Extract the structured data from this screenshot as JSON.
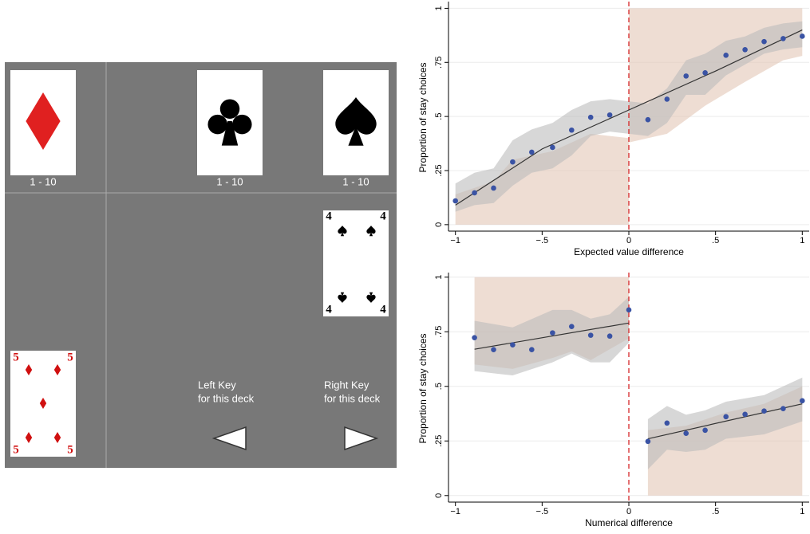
{
  "task": {
    "decks": [
      {
        "range": "1 - 10"
      },
      {
        "range": "1 - 10"
      },
      {
        "range": "1 - 10"
      }
    ],
    "cards": [
      {
        "rank": "4"
      },
      {
        "rank": "5"
      }
    ],
    "keys": [
      [
        "Left Key",
        "for this deck"
      ],
      [
        "Right Key",
        "for this deck"
      ]
    ]
  },
  "chart_data": [
    {
      "type": "scatter",
      "y_label": "Proportion of stay choices",
      "x_label": "Expected value difference",
      "xlim": [
        -1.04,
        1.04
      ],
      "ylim": [
        -0.03,
        1.02
      ],
      "xticks": [
        {
          "value": -1,
          "label": "−1"
        },
        {
          "value": -0.5,
          "label": "−.5"
        },
        0,
        {
          "value": 0.5,
          "label": ".5"
        },
        1
      ],
      "yticks": [
        0,
        {
          "value": 0.25,
          "label": ".25"
        },
        {
          "value": 0.5,
          "label": ".5"
        },
        {
          "value": 0.75,
          "label": ".75"
        },
        1
      ],
      "grid": true,
      "vline": 0,
      "vline_color": "#d62728",
      "bands": [
        {
          "color": "#e3c6b6",
          "x": [
            -1,
            -0.78,
            -0.67,
            -0.44,
            -0.22,
            0
          ],
          "lower": [
            0,
            0,
            0,
            0,
            0,
            0
          ],
          "upper": [
            0.14,
            0.2,
            0.3,
            0.34,
            0.42,
            0.4
          ]
        },
        {
          "color": "#e3c6b6",
          "x": [
            0,
            0.22,
            0.44,
            0.67,
            0.89,
            1
          ],
          "lower": [
            0.38,
            0.42,
            0.55,
            0.66,
            0.76,
            0.78
          ],
          "upper": [
            1,
            1,
            1,
            1,
            1,
            1
          ]
        },
        {
          "color": "#bdbdbd",
          "x": [
            -1,
            -0.89,
            -0.78,
            -0.67,
            -0.56,
            -0.44,
            -0.33,
            -0.22,
            -0.11,
            0.11,
            0.22,
            0.33,
            0.44,
            0.56,
            0.67,
            0.78,
            0.89,
            1
          ],
          "lower": [
            0.06,
            0.09,
            0.1,
            0.18,
            0.24,
            0.26,
            0.32,
            0.41,
            0.43,
            0.41,
            0.47,
            0.6,
            0.6,
            0.69,
            0.74,
            0.79,
            0.81,
            0.82
          ],
          "upper": [
            0.19,
            0.24,
            0.26,
            0.39,
            0.44,
            0.47,
            0.53,
            0.57,
            0.58,
            0.56,
            0.63,
            0.76,
            0.79,
            0.85,
            0.87,
            0.91,
            0.93,
            0.94
          ]
        }
      ],
      "fits": [
        {
          "color": "#333333",
          "x": [
            -1,
            -0.5,
            0,
            0.5,
            1
          ],
          "y": [
            0.09,
            0.35,
            0.53,
            0.71,
            0.9
          ]
        }
      ],
      "points": {
        "color": "#3a53a4",
        "x": [
          -1,
          -0.89,
          -0.78,
          -0.67,
          -0.56,
          -0.44,
          -0.33,
          -0.22,
          -0.11,
          0.11,
          0.22,
          0.33,
          0.44,
          0.56,
          0.67,
          0.78,
          0.89,
          1
        ],
        "y": [
          0.11,
          0.147,
          0.169,
          0.29,
          0.335,
          0.357,
          0.437,
          0.496,
          0.507,
          0.485,
          0.58,
          0.687,
          0.702,
          0.783,
          0.809,
          0.846,
          0.86,
          0.871
        ]
      }
    },
    {
      "type": "scatter",
      "y_label": "Proportion of stay choices",
      "x_label": "Numerical difference",
      "xlim": [
        -1.04,
        1.04
      ],
      "ylim": [
        -0.03,
        1.01
      ],
      "xticks": [
        {
          "value": -1,
          "label": "−1"
        },
        {
          "value": -0.5,
          "label": "−.5"
        },
        0,
        {
          "value": 0.5,
          "label": ".5"
        },
        1
      ],
      "yticks": [
        0,
        {
          "value": 0.25,
          "label": ".25"
        },
        {
          "value": 0.5,
          "label": ".5"
        },
        {
          "value": 0.75,
          "label": ".75"
        },
        1
      ],
      "grid": true,
      "vline": 0,
      "vline_color": "#d62728",
      "bands": [
        {
          "color": "#e3c6b6",
          "x": [
            -0.89,
            -0.67,
            -0.44,
            -0.33,
            -0.22,
            0
          ],
          "lower": [
            0.6,
            0.58,
            0.63,
            0.66,
            0.62,
            0.72
          ],
          "upper": [
            1,
            1,
            1,
            1,
            1,
            1
          ]
        },
        {
          "color": "#e3c6b6",
          "x": [
            0.11,
            0.33,
            0.56,
            0.78,
            1
          ],
          "lower": [
            0,
            0,
            0,
            0,
            0
          ],
          "upper": [
            0.3,
            0.32,
            0.38,
            0.42,
            0.5
          ]
        },
        {
          "color": "#bdbdbd",
          "x": [
            -0.89,
            -0.67,
            -0.44,
            -0.33,
            -0.22,
            -0.11,
            0
          ],
          "lower": [
            0.57,
            0.55,
            0.61,
            0.65,
            0.61,
            0.61,
            0.7
          ],
          "upper": [
            0.8,
            0.77,
            0.85,
            0.85,
            0.81,
            0.83,
            0.91
          ]
        },
        {
          "color": "#bdbdbd",
          "x": [
            0.11,
            0.22,
            0.33,
            0.44,
            0.56,
            0.78,
            1
          ],
          "lower": [
            0.12,
            0.21,
            0.2,
            0.21,
            0.26,
            0.28,
            0.34
          ],
          "upper": [
            0.35,
            0.41,
            0.37,
            0.39,
            0.43,
            0.46,
            0.54
          ]
        }
      ],
      "fits": [
        {
          "color": "#333333",
          "x": [
            -0.89,
            0
          ],
          "y": [
            0.67,
            0.79
          ]
        },
        {
          "color": "#333333",
          "x": [
            0.11,
            1
          ],
          "y": [
            0.26,
            0.42
          ]
        }
      ],
      "points": {
        "color": "#3a53a4",
        "x": [
          -0.89,
          -0.78,
          -0.67,
          -0.56,
          -0.44,
          -0.33,
          -0.22,
          -0.11,
          0,
          0.11,
          0.22,
          0.33,
          0.44,
          0.56,
          0.67,
          0.78,
          0.89,
          1
        ],
        "y": [
          0.723,
          0.668,
          0.69,
          0.668,
          0.745,
          0.774,
          0.734,
          0.73,
          0.85,
          0.248,
          0.332,
          0.285,
          0.299,
          0.361,
          0.372,
          0.387,
          0.398,
          0.434
        ]
      }
    }
  ]
}
